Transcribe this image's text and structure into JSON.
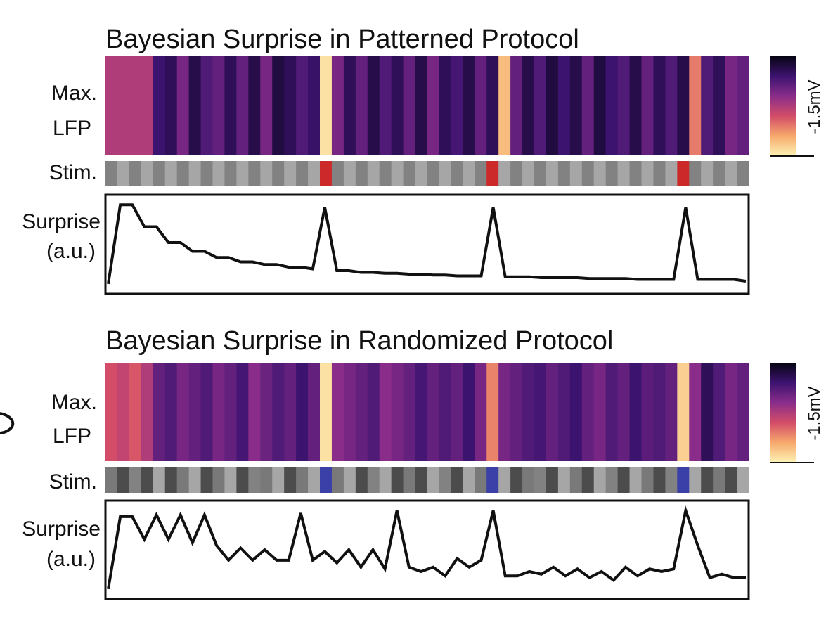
{
  "labels": {
    "max_lfp_line1": "Max.",
    "max_lfp_line2": "LFP",
    "stim": "Stim.",
    "surprise_line1": "Surprise",
    "surprise_line2": "(a.u.)",
    "colorbar": "-1.5mV"
  },
  "colors": {
    "oddball_patterned": "#cc2a2a",
    "oddball_randomized": "#3b3fa8"
  },
  "chart_data": [
    {
      "type": "heatmap+line",
      "title": "Bayesian Surprise in Patterned Protocol",
      "colorbar_label": "-1.5mV",
      "trials": 54,
      "oddball_trials": [
        18,
        32,
        48
      ],
      "lfp_intensity": [
        0.5,
        0.5,
        0.5,
        0.5,
        0.2,
        0.15,
        0.35,
        0.12,
        0.25,
        0.3,
        0.15,
        0.3,
        0.12,
        0.35,
        0.1,
        0.15,
        0.25,
        0.18,
        0.95,
        0.35,
        0.15,
        0.3,
        0.12,
        0.25,
        0.15,
        0.3,
        0.12,
        0.35,
        0.15,
        0.22,
        0.12,
        0.3,
        0.15,
        0.85,
        0.3,
        0.12,
        0.25,
        0.1,
        0.2,
        0.12,
        0.3,
        0.1,
        0.2,
        0.25,
        0.12,
        0.3,
        0.15,
        0.25,
        0.12,
        0.7,
        0.25,
        0.15,
        0.35,
        0.3
      ],
      "stim_levels": [
        0.5,
        0.7,
        0.5,
        0.7,
        0.5,
        0.7,
        0.5,
        0.7,
        0.5,
        0.7,
        0.5,
        0.7,
        0.5,
        0.7,
        0.5,
        0.7,
        0.5,
        0.7,
        0,
        0.5,
        0.7,
        0.5,
        0.7,
        0.5,
        0.7,
        0.5,
        0.7,
        0.5,
        0.7,
        0.5,
        0.7,
        0.5,
        0,
        0.7,
        0.5,
        0.7,
        0.5,
        0.7,
        0.5,
        0.7,
        0.5,
        0.7,
        0.5,
        0.7,
        0.5,
        0.7,
        0.5,
        0.7,
        0,
        0.5,
        0.7,
        0.5,
        0.7,
        0.5
      ],
      "surprise": [
        0.05,
        0.95,
        0.95,
        0.7,
        0.7,
        0.52,
        0.52,
        0.42,
        0.42,
        0.35,
        0.35,
        0.3,
        0.3,
        0.27,
        0.27,
        0.24,
        0.24,
        0.22,
        0.92,
        0.2,
        0.2,
        0.18,
        0.18,
        0.17,
        0.17,
        0.16,
        0.16,
        0.15,
        0.15,
        0.14,
        0.14,
        0.14,
        0.92,
        0.13,
        0.13,
        0.13,
        0.12,
        0.12,
        0.12,
        0.12,
        0.11,
        0.11,
        0.11,
        0.11,
        0.1,
        0.1,
        0.1,
        0.1,
        0.92,
        0.1,
        0.1,
        0.1,
        0.1,
        0.08
      ],
      "ylim": [
        0,
        1
      ]
    },
    {
      "type": "heatmap+line",
      "title": "Bayesian Surprise in Randomized Protocol",
      "colorbar_label": "-1.5mV",
      "trials": 54,
      "oddball_trials": [
        18,
        32,
        48
      ],
      "lfp_intensity": [
        0.6,
        0.55,
        0.62,
        0.5,
        0.3,
        0.25,
        0.35,
        0.3,
        0.25,
        0.35,
        0.3,
        0.22,
        0.4,
        0.32,
        0.25,
        0.3,
        0.2,
        0.3,
        0.95,
        0.4,
        0.35,
        0.3,
        0.25,
        0.4,
        0.35,
        0.3,
        0.22,
        0.3,
        0.25,
        0.3,
        0.2,
        0.35,
        0.72,
        0.35,
        0.3,
        0.25,
        0.22,
        0.3,
        0.25,
        0.2,
        0.3,
        0.35,
        0.25,
        0.3,
        0.2,
        0.28,
        0.25,
        0.3,
        0.9,
        0.4,
        0.15,
        0.25,
        0.35,
        0.3
      ],
      "stim_levels": [
        0.45,
        0.2,
        0.5,
        0.2,
        0.7,
        0.2,
        0.45,
        0.7,
        0.2,
        0.45,
        0.7,
        0.2,
        0.5,
        0.45,
        0.7,
        0.2,
        0.45,
        0.7,
        0,
        0.45,
        0.7,
        0.2,
        0.5,
        0.7,
        0.2,
        0.45,
        0.2,
        0.7,
        0.5,
        0.2,
        0.7,
        0.45,
        0,
        0.7,
        0.2,
        0.45,
        0.5,
        0.2,
        0.7,
        0.45,
        0.2,
        0.7,
        0.5,
        0.2,
        0.7,
        0.45,
        0.2,
        0.5,
        0,
        0.7,
        0.2,
        0.45,
        0.2,
        0.7
      ],
      "surprise": [
        0.05,
        0.88,
        0.88,
        0.62,
        0.9,
        0.62,
        0.9,
        0.58,
        0.9,
        0.55,
        0.38,
        0.52,
        0.38,
        0.5,
        0.38,
        0.38,
        0.92,
        0.38,
        0.48,
        0.35,
        0.5,
        0.3,
        0.5,
        0.28,
        0.95,
        0.3,
        0.25,
        0.3,
        0.2,
        0.4,
        0.3,
        0.38,
        0.95,
        0.2,
        0.2,
        0.25,
        0.22,
        0.3,
        0.2,
        0.28,
        0.18,
        0.25,
        0.15,
        0.3,
        0.2,
        0.28,
        0.25,
        0.28,
        0.95,
        0.55,
        0.18,
        0.22,
        0.18,
        0.18
      ],
      "ylim": [
        0,
        1
      ]
    }
  ]
}
